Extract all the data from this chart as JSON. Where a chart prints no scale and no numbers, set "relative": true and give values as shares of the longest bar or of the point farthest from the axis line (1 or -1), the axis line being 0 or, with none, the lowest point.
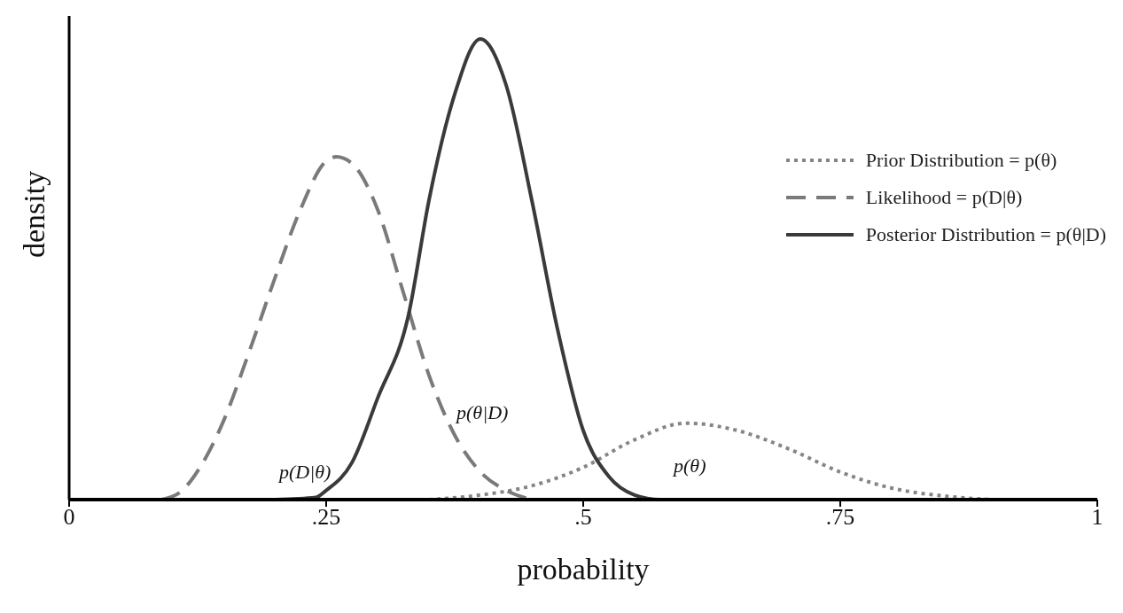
{
  "chart_data": {
    "type": "line",
    "xlabel": "probability",
    "ylabel": "density",
    "relative": true,
    "xlim": [
      0,
      1
    ],
    "xticks": [
      0,
      {
        "value": 0.25,
        "label": ".25"
      },
      {
        "value": 0.5,
        "label": ".5"
      },
      {
        "value": 0.75,
        "label": ".75"
      },
      1
    ],
    "tick_labels": "x",
    "grid": false,
    "legend": "top right",
    "marker": "none",
    "series": [
      {
        "name": "Prior Distribution = p(θ)",
        "color": "#858585",
        "line_style": "dotted",
        "x": [
          0.35,
          0.4,
          0.45,
          0.5,
          0.55,
          0.6,
          0.65,
          0.7,
          0.75,
          0.8,
          0.85,
          0.9
        ],
        "values": [
          0,
          0.01,
          0.03,
          0.07,
          0.13,
          0.166,
          0.15,
          0.11,
          0.06,
          0.025,
          0.008,
          0
        ]
      },
      {
        "name": "Likelihood = p(D|θ)",
        "color": "#7a7a7a",
        "line_style": "dashed",
        "x": [
          0.09,
          0.11,
          0.13,
          0.15,
          0.175,
          0.2,
          0.225,
          0.25,
          0.26,
          0.275,
          0.3,
          0.325,
          0.35,
          0.375,
          0.4,
          0.425,
          0.45
        ],
        "values": [
          0,
          0.02,
          0.08,
          0.17,
          0.32,
          0.48,
          0.63,
          0.735,
          0.744,
          0.73,
          0.63,
          0.45,
          0.27,
          0.14,
          0.06,
          0.02,
          0
        ]
      },
      {
        "name": "Posterior Distribution = p(θ|D)",
        "color": "#3a3a3a",
        "line_style": "solid",
        "x": [
          0.2,
          0.24,
          0.25,
          0.275,
          0.3,
          0.33,
          0.35,
          0.375,
          0.4,
          0.425,
          0.45,
          0.475,
          0.5,
          0.525,
          0.55,
          0.575,
          0.6
        ],
        "values": [
          0,
          0.005,
          0.02,
          0.08,
          0.22,
          0.4,
          0.65,
          0.88,
          1,
          0.9,
          0.65,
          0.37,
          0.15,
          0.05,
          0.01,
          0,
          0
        ]
      }
    ],
    "annotations": [
      "p(θ|D)",
      "p(D|θ)",
      "p(θ)"
    ]
  }
}
